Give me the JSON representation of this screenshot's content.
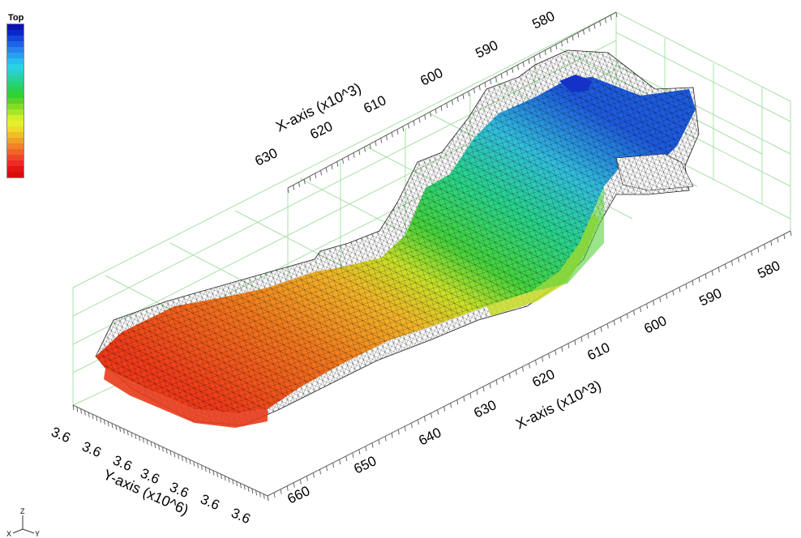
{
  "legend": {
    "title": "Top",
    "colors": [
      "#0a14b4",
      "#0a28c8",
      "#1446dc",
      "#1e64e6",
      "#2882f0",
      "#28a0f0",
      "#28bef0",
      "#28d2e6",
      "#28d2c8",
      "#28d2a0",
      "#28d278",
      "#28d250",
      "#32d232",
      "#5ad228",
      "#82dc28",
      "#aae628",
      "#d2f028",
      "#e6f028",
      "#f0dc28",
      "#f0be28",
      "#f0a028",
      "#f08228",
      "#f06428",
      "#f04628",
      "#f02828",
      "#e61414",
      "#dc0a0a"
    ]
  },
  "scene": {
    "x_axis_back": {
      "title": "X-axis (x10^3)",
      "ticks": [
        "630",
        "620",
        "610",
        "600",
        "590",
        "580"
      ]
    },
    "x_axis_front": {
      "title": "X-axis (x10^3)",
      "ticks": [
        "660",
        "650",
        "640",
        "630",
        "620",
        "610",
        "600",
        "590",
        "580"
      ]
    },
    "y_axis": {
      "title": "Y-axis (x10^6)",
      "ticks": [
        "3.6",
        "3.6",
        "3.6",
        "3.6",
        "3.6",
        "3.6",
        "3.6"
      ]
    },
    "surface_colors": {
      "red": "#f04a1e",
      "orange": "#f08c28",
      "yellow": "#dcdc28",
      "green": "#3cd23c",
      "cyan": "#32c8dc",
      "blue": "#1e64dc"
    },
    "grid_color": "#a8e0a8"
  },
  "triad": {
    "z": "Z",
    "x": "X",
    "y": "Y"
  }
}
